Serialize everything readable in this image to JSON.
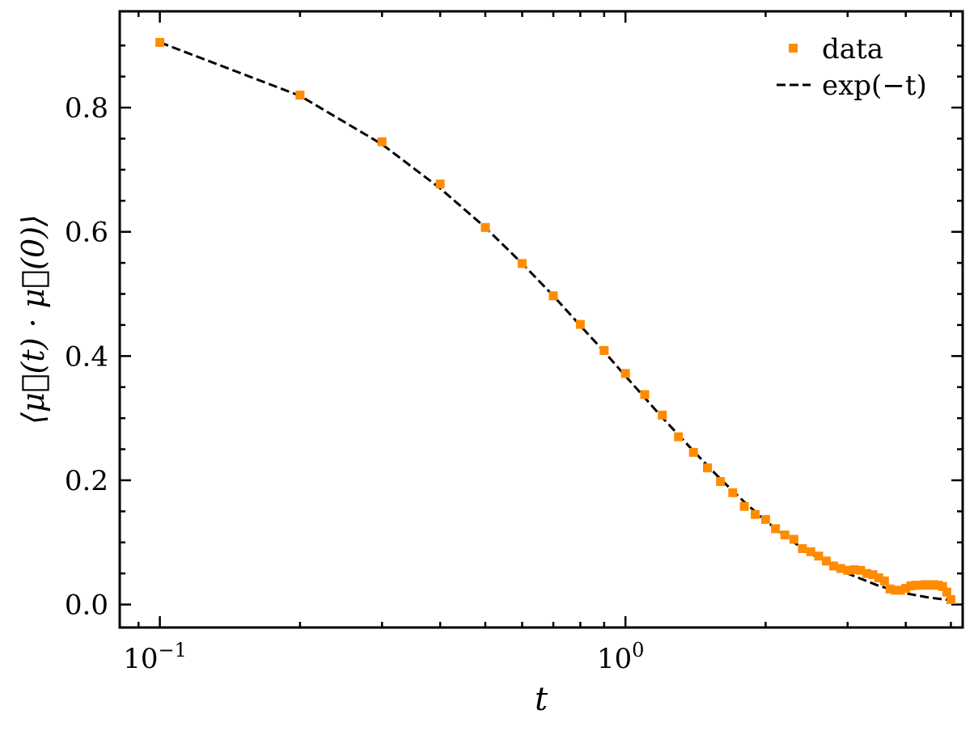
{
  "chart_data": {
    "type": "scatter",
    "xscale": "log",
    "xlim": [
      0.082,
      5.3
    ],
    "ylim": [
      -0.037,
      0.955
    ],
    "xlabel": "t",
    "ylabel": "⟨μ⃗(t) · μ⃗(0)⟩",
    "x_ticks": [
      {
        "value": 0.1,
        "base": "10",
        "exp": "−1"
      },
      {
        "value": 1,
        "base": "10",
        "exp": "0"
      }
    ],
    "y_ticks": [
      {
        "value": 0.0,
        "label": "0.0"
      },
      {
        "value": 0.2,
        "label": "0.2"
      },
      {
        "value": 0.4,
        "label": "0.4"
      },
      {
        "value": 0.6,
        "label": "0.6"
      },
      {
        "value": 0.8,
        "label": "0.8"
      }
    ],
    "grid": false,
    "legend_position": "top-right",
    "series": [
      {
        "name": "data",
        "kind": "markers",
        "marker": "square",
        "color": "#ff8c00",
        "x": [
          0.1,
          0.2,
          0.3,
          0.4,
          0.5,
          0.6,
          0.7,
          0.8,
          0.9,
          1.0,
          1.1,
          1.2,
          1.3,
          1.4,
          1.5,
          1.6,
          1.7,
          1.8,
          1.9,
          2.0,
          2.1,
          2.2,
          2.3,
          2.4,
          2.5,
          2.6,
          2.7,
          2.8,
          2.9,
          3.0,
          3.1,
          3.2,
          3.3,
          3.4,
          3.5,
          3.6,
          3.7,
          3.8,
          3.9,
          4.0,
          4.1,
          4.2,
          4.3,
          4.4,
          4.5,
          4.6,
          4.7,
          4.8,
          4.9,
          5.0
        ],
        "y": [
          0.905,
          0.82,
          0.745,
          0.677,
          0.607,
          0.549,
          0.497,
          0.451,
          0.409,
          0.372,
          0.338,
          0.305,
          0.27,
          0.245,
          0.22,
          0.198,
          0.18,
          0.158,
          0.145,
          0.137,
          0.122,
          0.112,
          0.105,
          0.09,
          0.085,
          0.078,
          0.07,
          0.062,
          0.058,
          0.055,
          0.056,
          0.055,
          0.05,
          0.048,
          0.043,
          0.038,
          0.025,
          0.023,
          0.023,
          0.026,
          0.03,
          0.031,
          0.031,
          0.032,
          0.031,
          0.032,
          0.031,
          0.029,
          0.02,
          0.008
        ]
      },
      {
        "name": "exp(−t)",
        "kind": "line",
        "dash": "dashed",
        "color": "#000000",
        "x": [
          0.1,
          0.2,
          0.3,
          0.4,
          0.5,
          0.6,
          0.7,
          0.8,
          0.9,
          1.0,
          1.2,
          1.4,
          1.6,
          1.8,
          2.0,
          2.3,
          2.6,
          3.0,
          3.5,
          4.0,
          4.5,
          5.0
        ],
        "y": [
          0.905,
          0.819,
          0.741,
          0.67,
          0.607,
          0.549,
          0.497,
          0.449,
          0.407,
          0.368,
          0.301,
          0.247,
          0.202,
          0.165,
          0.135,
          0.1,
          0.074,
          0.05,
          0.03,
          0.018,
          0.011,
          0.007
        ]
      }
    ]
  }
}
